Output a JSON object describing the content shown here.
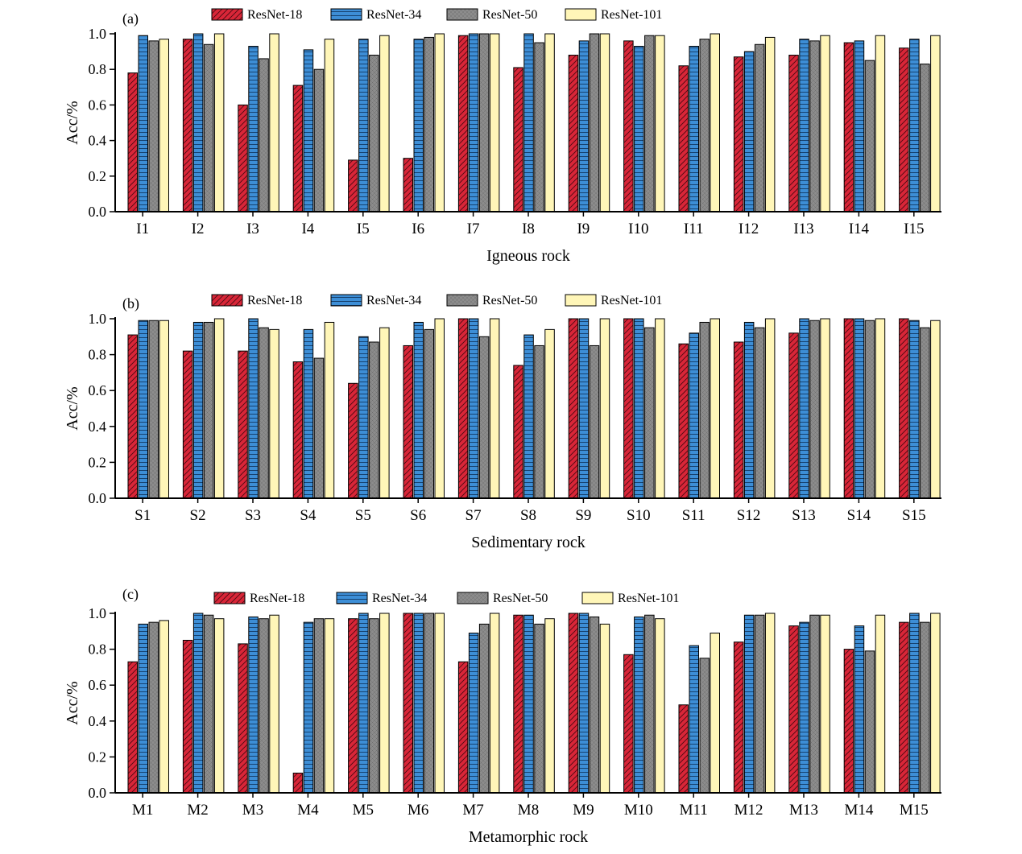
{
  "colors": {
    "ResNet-18": "#d92638",
    "ResNet-34": "#3d8ed6",
    "ResNet-50": "#8c8c8c",
    "ResNet-101": "#fff6b8",
    "axis": "#000000"
  },
  "chart_data": [
    {
      "type": "bar",
      "panel_label": "(a)",
      "xlabel": "Igneous rock",
      "ylabel": "Acc/%",
      "ylim": [
        0,
        1.0
      ],
      "yticks": [
        "0.0",
        "0.2",
        "0.4",
        "0.6",
        "0.8",
        "1.0"
      ],
      "legend_position": "top",
      "grid": false,
      "categories": [
        "I1",
        "I2",
        "I3",
        "I4",
        "I5",
        "I6",
        "I7",
        "I8",
        "I9",
        "I10",
        "I11",
        "I12",
        "I13",
        "I14",
        "I15"
      ],
      "series": [
        {
          "name": "ResNet-18",
          "values": [
            0.78,
            0.97,
            0.6,
            0.71,
            0.29,
            0.3,
            0.99,
            0.81,
            0.88,
            0.96,
            0.82,
            0.87,
            0.88,
            0.95,
            0.92
          ]
        },
        {
          "name": "ResNet-34",
          "values": [
            0.99,
            1.0,
            0.93,
            0.91,
            0.97,
            0.97,
            1.0,
            1.0,
            0.96,
            0.93,
            0.93,
            0.9,
            0.97,
            0.96,
            0.97
          ]
        },
        {
          "name": "ResNet-50",
          "values": [
            0.96,
            0.94,
            0.86,
            0.8,
            0.88,
            0.98,
            1.0,
            0.95,
            1.0,
            0.99,
            0.97,
            0.94,
            0.96,
            0.85,
            0.83
          ]
        },
        {
          "name": "ResNet-101",
          "values": [
            0.97,
            1.0,
            1.0,
            0.97,
            0.99,
            1.0,
            1.0,
            1.0,
            1.0,
            0.99,
            1.0,
            0.98,
            0.99,
            0.99,
            0.99
          ]
        }
      ]
    },
    {
      "type": "bar",
      "panel_label": "(b)",
      "xlabel": "Sedimentary rock",
      "ylabel": "Acc/%",
      "ylim": [
        0,
        1.0
      ],
      "yticks": [
        "0.0",
        "0.2",
        "0.4",
        "0.6",
        "0.8",
        "1.0"
      ],
      "legend_position": "top",
      "grid": false,
      "categories": [
        "S1",
        "S2",
        "S3",
        "S4",
        "S5",
        "S6",
        "S7",
        "S8",
        "S9",
        "S10",
        "S11",
        "S12",
        "S13",
        "S14",
        "S15"
      ],
      "series": [
        {
          "name": "ResNet-18",
          "values": [
            0.91,
            0.82,
            0.82,
            0.76,
            0.64,
            0.85,
            1.0,
            0.74,
            1.0,
            1.0,
            0.86,
            0.87,
            0.92,
            1.0,
            1.0
          ]
        },
        {
          "name": "ResNet-34",
          "values": [
            0.99,
            0.98,
            1.0,
            0.94,
            0.9,
            0.98,
            1.0,
            0.91,
            1.0,
            1.0,
            0.92,
            0.98,
            1.0,
            1.0,
            0.99
          ]
        },
        {
          "name": "ResNet-50",
          "values": [
            0.99,
            0.98,
            0.95,
            0.78,
            0.87,
            0.94,
            0.9,
            0.85,
            0.85,
            0.95,
            0.98,
            0.95,
            0.99,
            0.99,
            0.95
          ]
        },
        {
          "name": "ResNet-101",
          "values": [
            0.99,
            1.0,
            0.94,
            0.98,
            0.95,
            1.0,
            1.0,
            0.94,
            1.0,
            1.0,
            1.0,
            1.0,
            1.0,
            1.0,
            0.99
          ]
        }
      ]
    },
    {
      "type": "bar",
      "panel_label": "(c)",
      "xlabel": "Metamorphic rock",
      "ylabel": "Acc/%",
      "ylim": [
        0,
        1.0
      ],
      "yticks": [
        "0.0",
        "0.2",
        "0.4",
        "0.6",
        "0.8",
        "1.0"
      ],
      "legend_position": "top",
      "grid": false,
      "categories": [
        "M1",
        "M2",
        "M3",
        "M4",
        "M5",
        "M6",
        "M7",
        "M8",
        "M9",
        "M10",
        "M11",
        "M12",
        "M13",
        "M14",
        "M15"
      ],
      "series": [
        {
          "name": "ResNet-18",
          "values": [
            0.73,
            0.85,
            0.83,
            0.11,
            0.97,
            1.0,
            0.73,
            0.99,
            1.0,
            0.77,
            0.49,
            0.84,
            0.93,
            0.8,
            0.95
          ]
        },
        {
          "name": "ResNet-34",
          "values": [
            0.94,
            1.0,
            0.98,
            0.95,
            1.0,
            1.0,
            0.89,
            0.99,
            1.0,
            0.98,
            0.82,
            0.99,
            0.95,
            0.93,
            1.0
          ]
        },
        {
          "name": "ResNet-50",
          "values": [
            0.95,
            0.99,
            0.97,
            0.97,
            0.97,
            1.0,
            0.94,
            0.94,
            0.98,
            0.99,
            0.75,
            0.99,
            0.99,
            0.79,
            0.95
          ]
        },
        {
          "name": "ResNet-101",
          "values": [
            0.96,
            0.97,
            0.99,
            0.97,
            1.0,
            1.0,
            1.0,
            0.97,
            0.94,
            0.97,
            0.89,
            1.0,
            0.99,
            0.99,
            1.0
          ]
        }
      ]
    }
  ]
}
